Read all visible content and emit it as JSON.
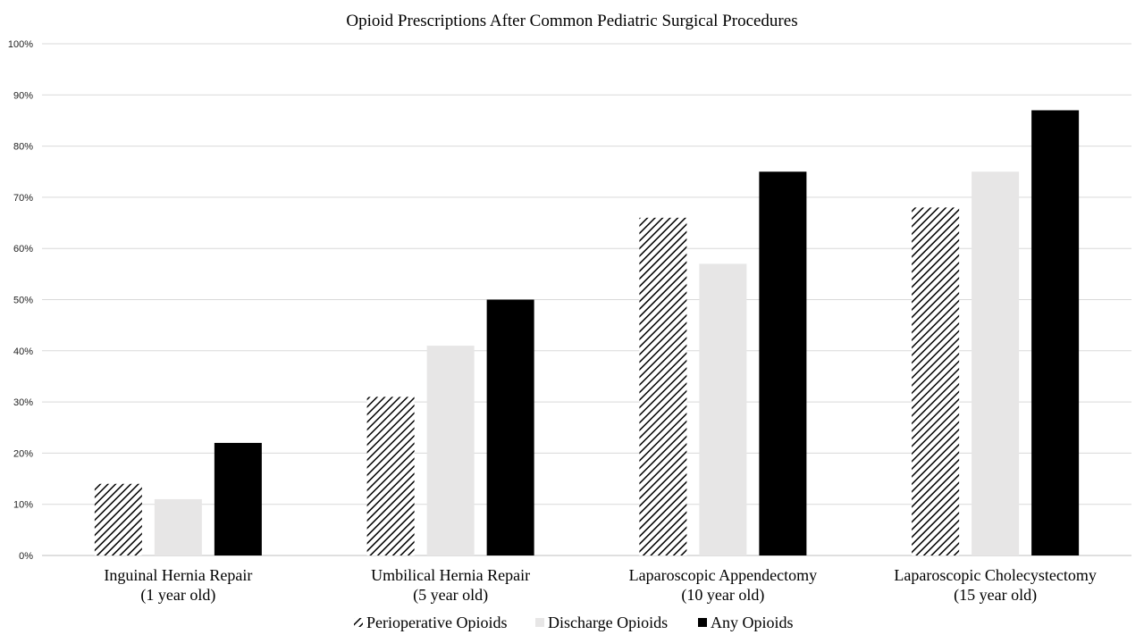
{
  "chart_data": {
    "type": "bar",
    "title": "Opioid Prescriptions After Common  Pediatric Surgical Procedures",
    "categories": [
      [
        "Inguinal Hernia Repair",
        "(1 year old)"
      ],
      [
        "Umbilical Hernia Repair",
        "(5 year old)"
      ],
      [
        "Laparoscopic Appendectomy",
        "(10 year old)"
      ],
      [
        "Laparoscopic Cholecystectomy",
        "(15 year old)"
      ]
    ],
    "series": [
      {
        "name": "Perioperative Opioids",
        "values": [
          14,
          31,
          66,
          68
        ],
        "fill": "hatch",
        "color": "#000000"
      },
      {
        "name": "Discharge Opioids",
        "values": [
          11,
          41,
          57,
          75
        ],
        "fill": "solid",
        "color": "#e7e6e6"
      },
      {
        "name": "Any Opioids",
        "values": [
          22,
          50,
          75,
          87
        ],
        "fill": "solid",
        "color": "#000000"
      }
    ],
    "ylim": [
      0,
      100
    ],
    "yticks": [
      "0%",
      "10%",
      "20%",
      "30%",
      "40%",
      "50%",
      "60%",
      "70%",
      "80%",
      "90%",
      "100%"
    ],
    "grid": true,
    "legend_position": "bottom"
  }
}
